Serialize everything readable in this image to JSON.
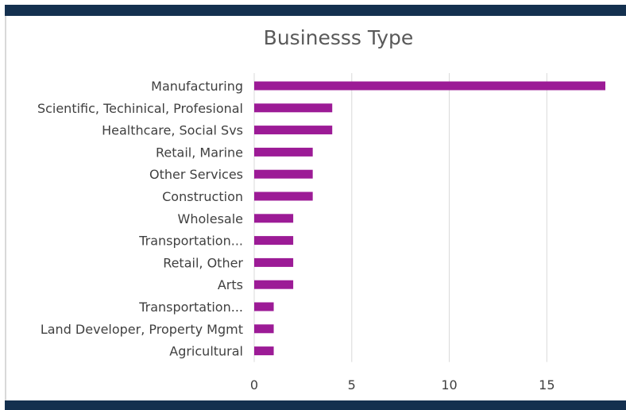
{
  "chart_data": {
    "type": "bar",
    "orientation": "horizontal",
    "title": "Businesss Type",
    "categories": [
      "Manufacturing",
      "Scientific, Techinical, Profesional",
      "Healthcare, Social Svs",
      "Retail, Marine",
      "Other Services",
      "Construction",
      "Wholesale",
      "Transportation...",
      "Retail, Other",
      "Arts",
      "Transportation...",
      "Land Developer, Property Mgmt",
      "Agricultural"
    ],
    "values": [
      18,
      4,
      4,
      3,
      3,
      3,
      2,
      2,
      2,
      2,
      1,
      1,
      1
    ],
    "xlim": [
      0,
      18
    ],
    "xticks": [
      "0",
      "5",
      "10",
      "15"
    ],
    "xtick_values": [
      0,
      5,
      10,
      15
    ],
    "grid": "vertical",
    "bar_color": "#9c1b96",
    "grid_color": "#d9d9d9",
    "text_color": "#404040"
  },
  "colors": {
    "band": "#14304f",
    "background": "#ffffff"
  }
}
